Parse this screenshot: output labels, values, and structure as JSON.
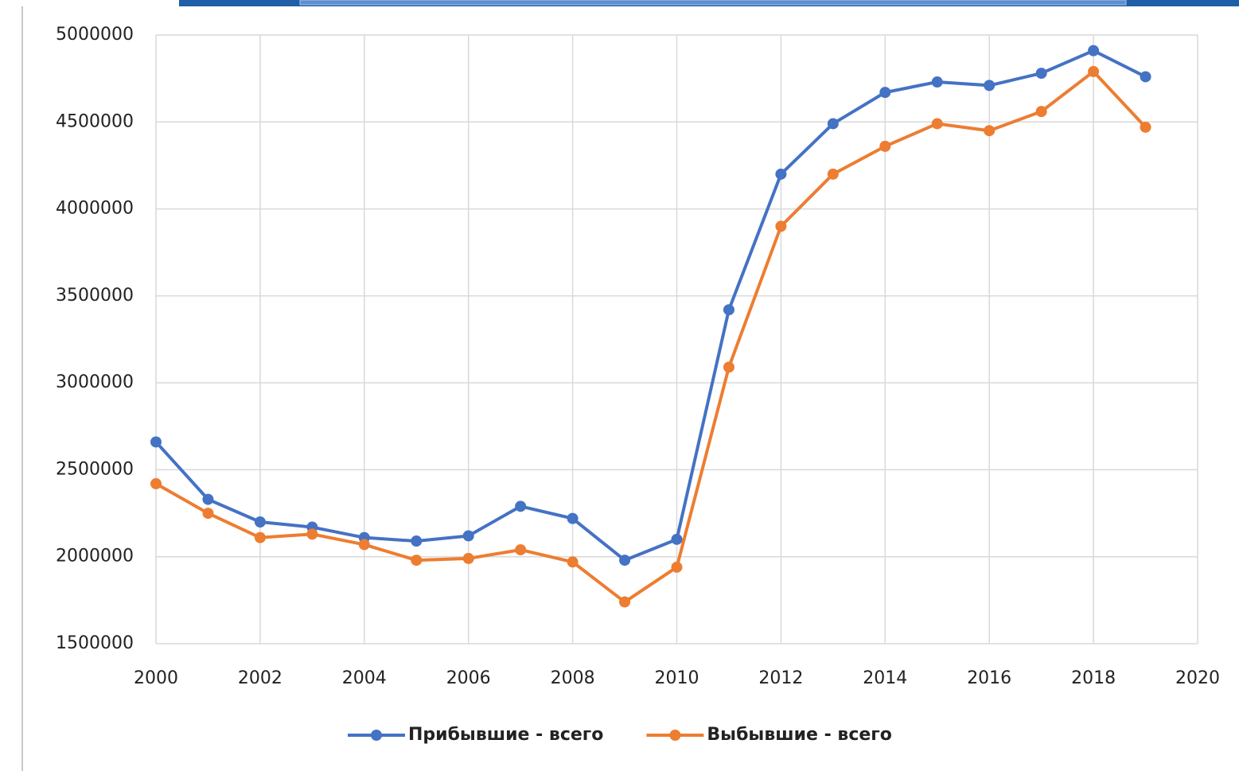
{
  "chart_data": {
    "type": "line",
    "x": [
      2000,
      2001,
      2002,
      2003,
      2004,
      2005,
      2006,
      2007,
      2008,
      2009,
      2010,
      2011,
      2012,
      2013,
      2014,
      2015,
      2016,
      2017,
      2018,
      2019
    ],
    "series": [
      {
        "name": "Прибывшие - всего",
        "color": "#4472c4",
        "values": [
          2660000,
          2330000,
          2200000,
          2170000,
          2110000,
          2090000,
          2120000,
          2290000,
          2220000,
          1980000,
          2100000,
          3420000,
          4200000,
          4490000,
          4670000,
          4730000,
          4710000,
          4780000,
          4910000,
          4760000
        ]
      },
      {
        "name": "Выбывшие - всего",
        "color": "#ed7d31",
        "values": [
          2420000,
          2250000,
          2110000,
          2130000,
          2070000,
          1980000,
          1990000,
          2040000,
          1970000,
          1740000,
          1940000,
          3090000,
          3900000,
          4200000,
          4360000,
          4490000,
          4450000,
          4560000,
          4790000,
          4470000
        ]
      }
    ],
    "xlim": [
      2000,
      2020
    ],
    "xticks": [
      2000,
      2002,
      2004,
      2006,
      2008,
      2010,
      2012,
      2014,
      2016,
      2018,
      2020
    ],
    "ylim": [
      1500000,
      5000000
    ],
    "yticks": [
      1500000,
      2000000,
      2500000,
      3000000,
      3500000,
      4000000,
      4500000,
      5000000
    ],
    "grid": true,
    "legend": "bottom"
  }
}
